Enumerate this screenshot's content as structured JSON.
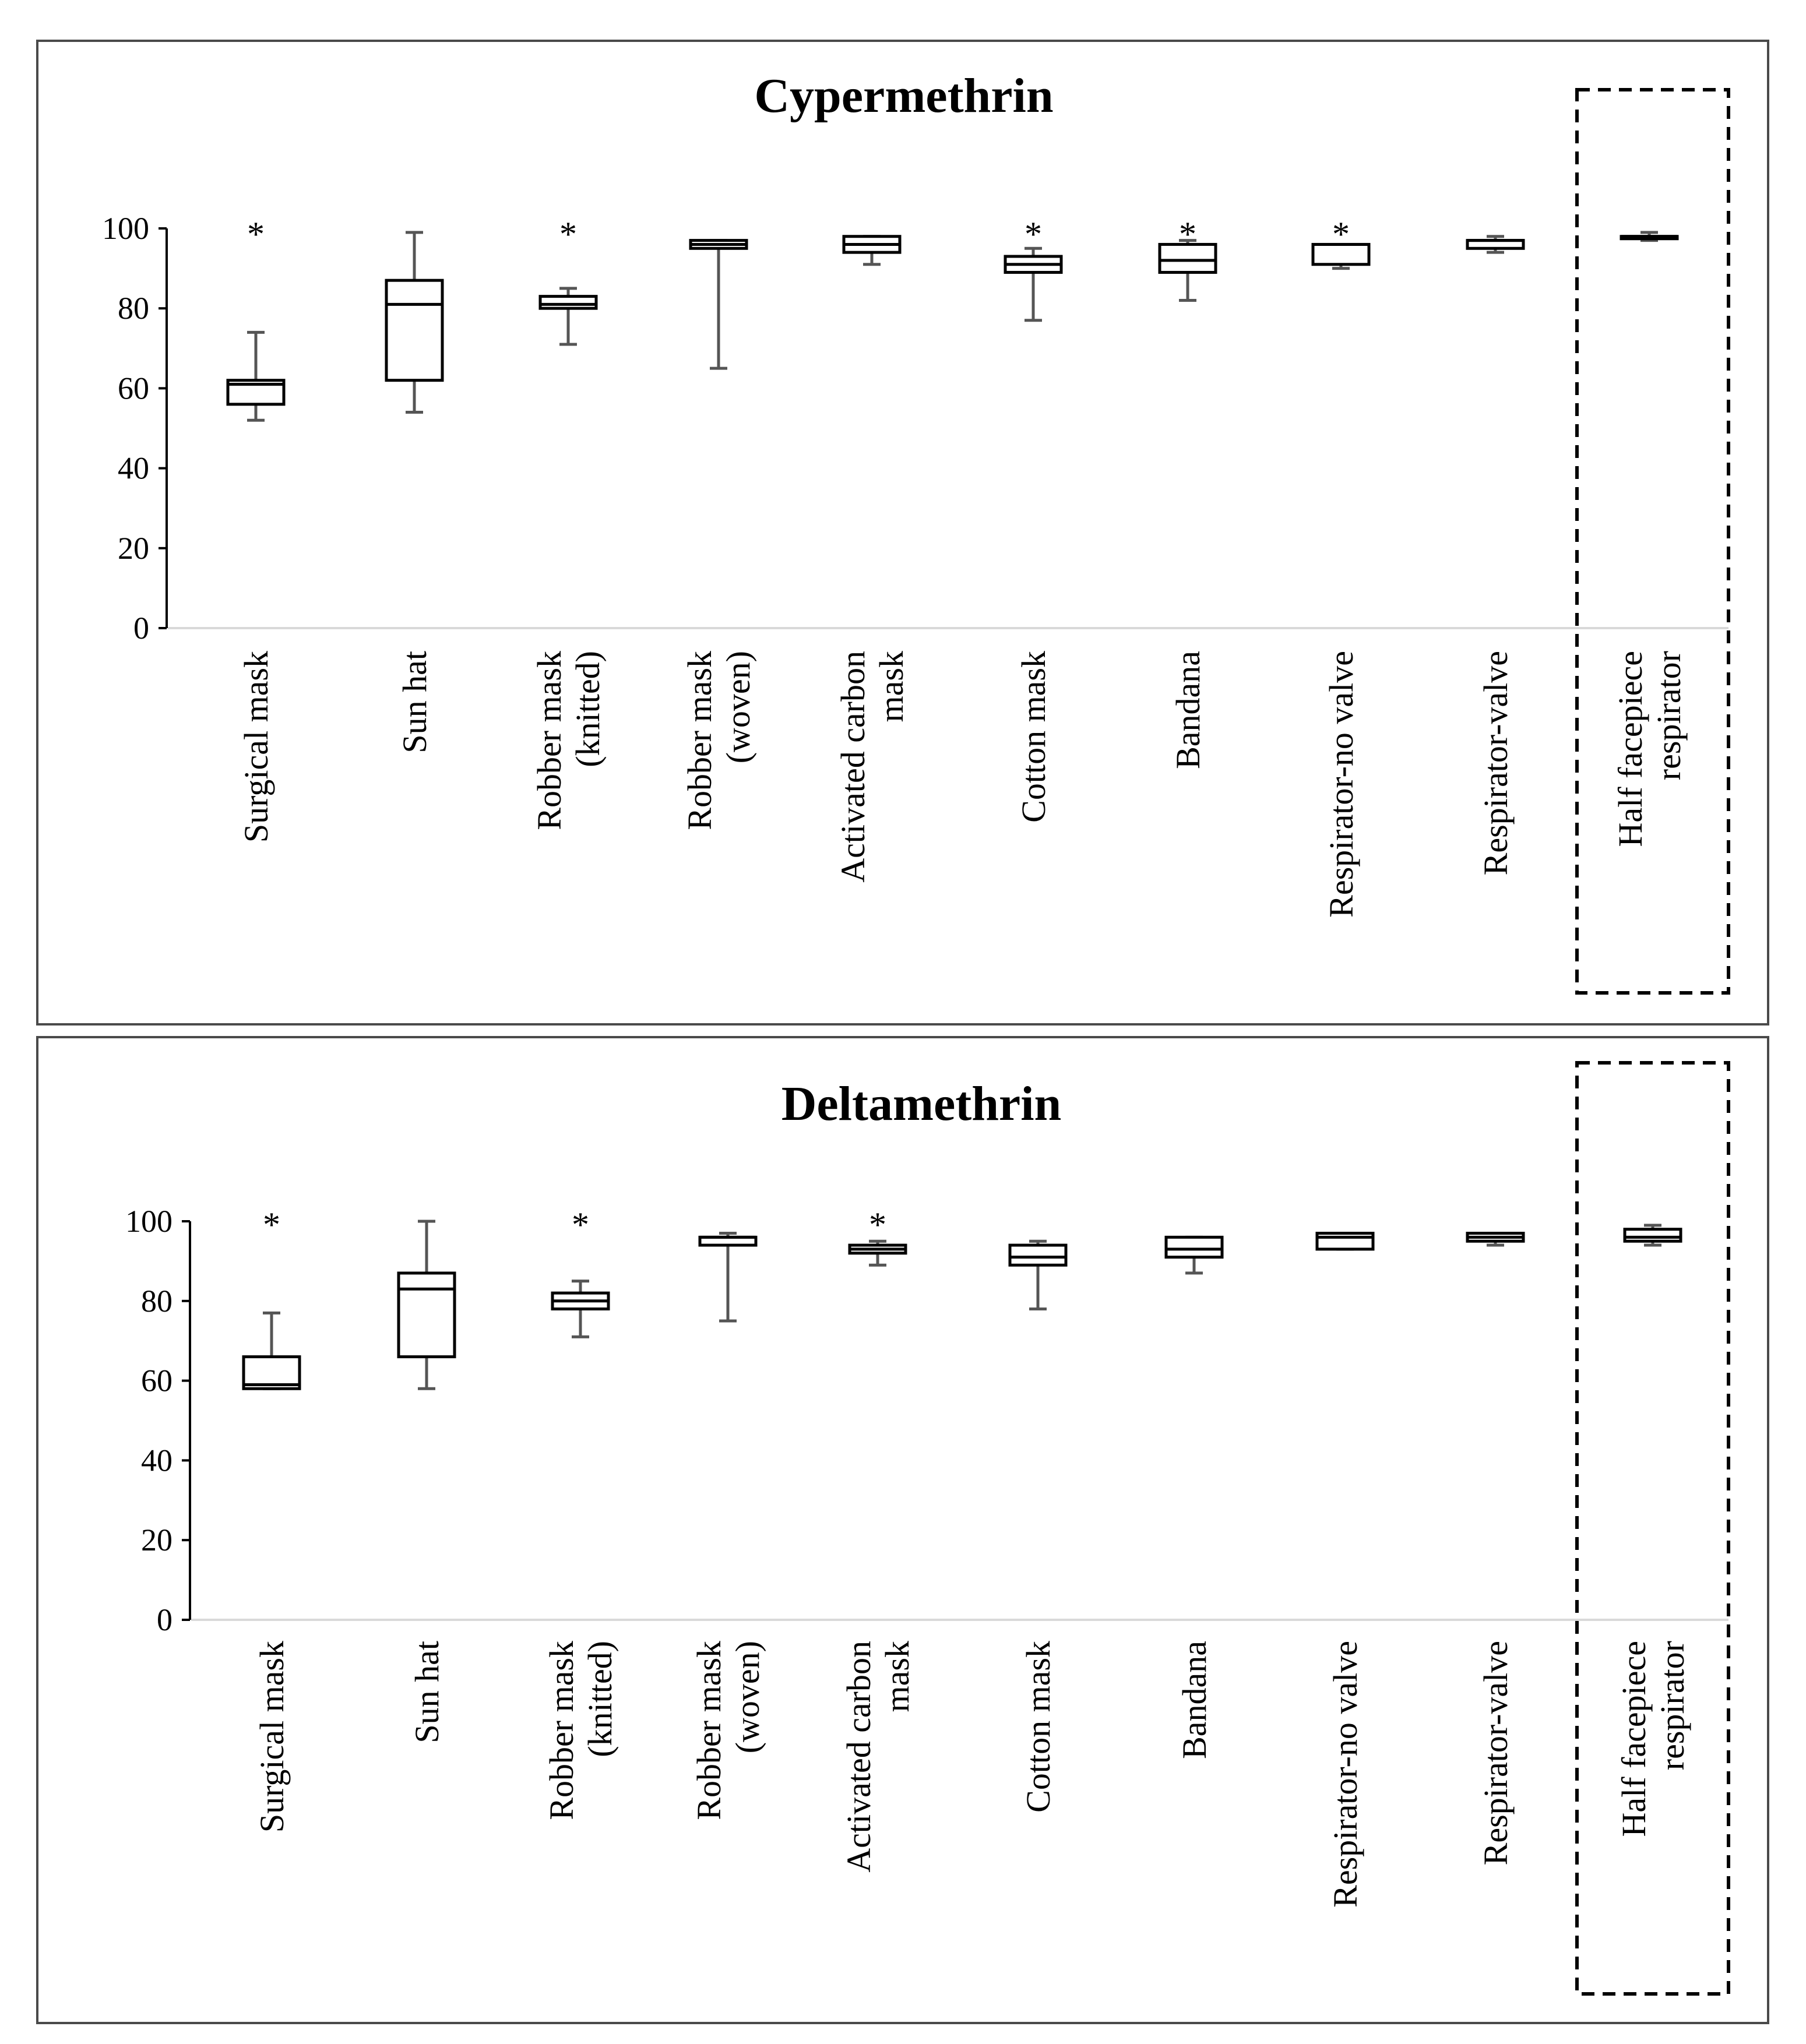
{
  "chart_data": [
    {
      "type": "box",
      "title": "Cypermethrin",
      "ylim": [
        0,
        100
      ],
      "yticks": [
        "0",
        "20",
        "40",
        "60",
        "80",
        "100"
      ],
      "outlier_marker": "*",
      "highlighted_category": "Half facepiece respirator",
      "categories": [
        {
          "label_lines": [
            "Surgical mask"
          ],
          "min": 52,
          "q1": 56,
          "median": 61,
          "q3": 62,
          "max": 74,
          "outlier": true
        },
        {
          "label_lines": [
            "Sun hat"
          ],
          "min": 54,
          "q1": 62,
          "median": 81,
          "q3": 87,
          "max": 99,
          "outlier": false
        },
        {
          "label_lines": [
            "Robber mask",
            "(knitted)"
          ],
          "min": 71,
          "q1": 80,
          "median": 81,
          "q3": 83,
          "max": 85,
          "outlier": true
        },
        {
          "label_lines": [
            "Robber mask",
            "(woven)"
          ],
          "min": 65,
          "q1": 95,
          "median": 96,
          "q3": 97,
          "max": 97,
          "outlier": false
        },
        {
          "label_lines": [
            "Activated carbon",
            "mask"
          ],
          "min": 91,
          "q1": 94,
          "median": 96,
          "q3": 98,
          "max": 98,
          "outlier": false
        },
        {
          "label_lines": [
            "Cotton mask"
          ],
          "min": 77,
          "q1": 89,
          "median": 91,
          "q3": 93,
          "max": 95,
          "outlier": true
        },
        {
          "label_lines": [
            "Bandana"
          ],
          "min": 82,
          "q1": 89,
          "median": 92,
          "q3": 96,
          "max": 97,
          "outlier": true
        },
        {
          "label_lines": [
            "Respirator-no valve"
          ],
          "min": 90,
          "q1": 91,
          "median": 96,
          "q3": 96,
          "max": 96,
          "outlier": true
        },
        {
          "label_lines": [
            "Respirator-valve"
          ],
          "min": 94,
          "q1": 95,
          "median": 97,
          "q3": 97,
          "max": 98,
          "outlier": false
        },
        {
          "label_lines": [
            "Half facepiece",
            "respirator"
          ],
          "min": 97,
          "q1": 98,
          "median": 98,
          "q3": 98,
          "max": 99,
          "outlier": false
        }
      ]
    },
    {
      "type": "box",
      "title": "Deltamethrin",
      "ylim": [
        0,
        100
      ],
      "yticks": [
        "0",
        "20",
        "40",
        "60",
        "80",
        "100"
      ],
      "outlier_marker": "*",
      "highlighted_category": "Half facepiece respirator",
      "categories": [
        {
          "label_lines": [
            "Surgical mask"
          ],
          "min": 58,
          "q1": 58,
          "median": 59,
          "q3": 66,
          "max": 77,
          "outlier": true
        },
        {
          "label_lines": [
            "Sun hat"
          ],
          "min": 58,
          "q1": 66,
          "median": 83,
          "q3": 87,
          "max": 100,
          "outlier": false
        },
        {
          "label_lines": [
            "Robber mask",
            "(knitted)"
          ],
          "min": 71,
          "q1": 78,
          "median": 80,
          "q3": 82,
          "max": 85,
          "outlier": true
        },
        {
          "label_lines": [
            "Robber mask",
            "(woven)"
          ],
          "min": 75,
          "q1": 94,
          "median": 96,
          "q3": 96,
          "max": 97,
          "outlier": false
        },
        {
          "label_lines": [
            "Activated carbon",
            "mask"
          ],
          "min": 89,
          "q1": 92,
          "median": 93,
          "q3": 94,
          "max": 95,
          "outlier": true
        },
        {
          "label_lines": [
            "Cotton mask"
          ],
          "min": 78,
          "q1": 89,
          "median": 91,
          "q3": 94,
          "max": 95,
          "outlier": false
        },
        {
          "label_lines": [
            "Bandana"
          ],
          "min": 87,
          "q1": 91,
          "median": 93,
          "q3": 96,
          "max": 96,
          "outlier": false
        },
        {
          "label_lines": [
            "Respirator-no valve"
          ],
          "min": 93,
          "q1": 93,
          "median": 96,
          "q3": 97,
          "max": 97,
          "outlier": false
        },
        {
          "label_lines": [
            "Respirator-valve"
          ],
          "min": 94,
          "q1": 95,
          "median": 96,
          "q3": 97,
          "max": 97,
          "outlier": false
        },
        {
          "label_lines": [
            "Half facepiece",
            "respirator"
          ],
          "min": 94,
          "q1": 95,
          "median": 96,
          "q3": 98,
          "max": 99,
          "outlier": false
        }
      ]
    }
  ]
}
